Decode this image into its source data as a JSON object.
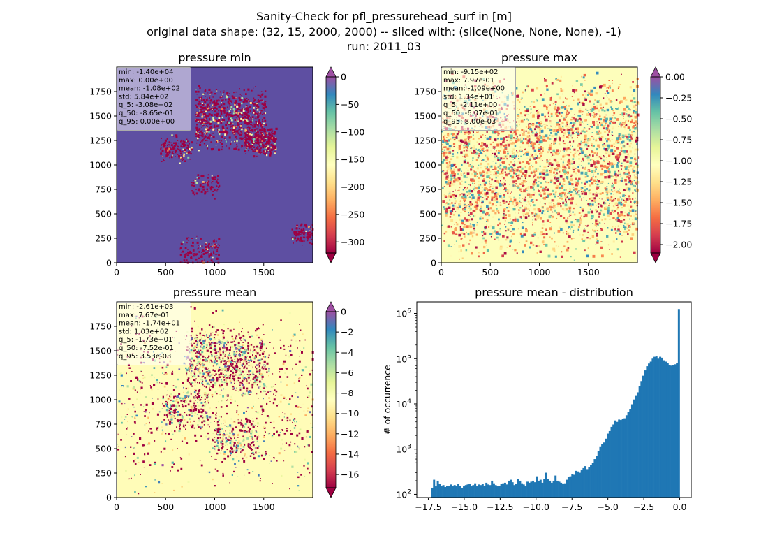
{
  "title_lines": [
    "Sanity-Check for pfl_pressurehead_surf in [m]",
    "original data shape: (32, 15, 2000, 2000) -- sliced with: (slice(None, None, None), -1)",
    "run: 2011_03"
  ],
  "colors": {
    "background_min": "#5e4fa2",
    "background_max": "#fdfebb",
    "background_mean": "#fffcb8",
    "accent_dark": "#9e0142",
    "hist_bar": "#1f77b4",
    "stats_box_bg": "#ffffff",
    "stats_box_border": "#aaaaaa"
  },
  "colormap": "Spectral",
  "chart_data": [
    {
      "type": "heatmap",
      "title": "pressure min",
      "xlim": [
        0,
        2000
      ],
      "ylim": [
        0,
        2000
      ],
      "xticks": [
        "0",
        "500",
        "1000",
        "1500"
      ],
      "yticks": [
        "0",
        "250",
        "500",
        "750",
        "1000",
        "1250",
        "1500",
        "1750"
      ],
      "colorbar": {
        "range": [
          -320,
          0
        ],
        "ticks": [
          "0",
          "−50",
          "−100",
          "−150",
          "−200",
          "−250",
          "−300"
        ],
        "extend": "both"
      },
      "stats": [
        "min: -1.40e+04",
        "max: 0.00e+00",
        "mean: -1.08e+02",
        "std: 5.84e+02",
        "q_5: -3.08e+02",
        "q_50: -8.65e-01",
        "q_95: 0.00e+00"
      ]
    },
    {
      "type": "heatmap",
      "title": "pressure max",
      "xlim": [
        0,
        2000
      ],
      "ylim": [
        0,
        2000
      ],
      "xticks": [
        "0",
        "500",
        "1000",
        "1500"
      ],
      "yticks": [
        "0",
        "250",
        "500",
        "750",
        "1000",
        "1250",
        "1500",
        "1750"
      ],
      "colorbar": {
        "range": [
          -2.1,
          0
        ],
        "ticks": [
          "0.00",
          "−0.25",
          "−0.50",
          "−0.75",
          "−1.00",
          "−1.25",
          "−1.50",
          "−1.75",
          "−2.00"
        ],
        "extend": "both"
      },
      "stats": [
        "min: -9.15e+02",
        "max: 7.97e-01",
        "mean: -1.09e+00",
        "std: 1.34e+01",
        "q_5: -2.11e+00",
        "q_50: -6.07e-01",
        "q_95: 8.00e-03"
      ]
    },
    {
      "type": "heatmap",
      "title": "pressure mean",
      "xlim": [
        0,
        2000
      ],
      "ylim": [
        0,
        2000
      ],
      "xticks": [
        "0",
        "500",
        "1000",
        "1500"
      ],
      "yticks": [
        "0",
        "250",
        "500",
        "750",
        "1000",
        "1250",
        "1500",
        "1750"
      ],
      "colorbar": {
        "range": [
          -17.3,
          0
        ],
        "ticks": [
          "0",
          "−2",
          "−4",
          "−6",
          "−8",
          "−10",
          "−12",
          "−14",
          "−16"
        ],
        "extend": "both"
      },
      "stats": [
        "min: -2.61e+03",
        "max: 7.67e-01",
        "mean: -1.74e+01",
        "std: 1.03e+02",
        "q_5: -1.73e+01",
        "q_50: -7.52e-01",
        "q_95: 3.53e-03"
      ]
    },
    {
      "type": "bar",
      "title": "pressure mean - distribution",
      "ylabel": "# of occurrence",
      "xlabel": "",
      "yscale": "log",
      "xlim": [
        -18.3,
        0.8
      ],
      "ylim": [
        85,
        1800000
      ],
      "xticks": [
        "−17.5",
        "−15.0",
        "−12.5",
        "−10.0",
        "−7.5",
        "−5.0",
        "−2.5",
        "0.0"
      ],
      "yticks": [
        "10^2",
        "10^3",
        "10^4",
        "10^5",
        "10^6"
      ],
      "bin_range": [
        -17.3,
        0
      ],
      "counts": [
        140,
        210,
        150,
        200,
        170,
        150,
        160,
        145,
        155,
        150,
        165,
        150,
        160,
        150,
        170,
        155,
        140,
        150,
        160,
        165,
        170,
        150,
        160,
        175,
        150,
        165,
        160,
        170,
        155,
        180,
        165,
        160,
        200,
        175,
        160,
        150,
        155,
        170,
        175,
        180,
        165,
        200,
        210,
        185,
        160,
        170,
        220,
        200,
        175,
        165,
        150,
        190,
        180,
        190,
        200,
        185,
        250,
        200,
        210,
        180,
        220,
        300,
        220,
        200,
        180,
        200,
        260,
        200,
        190,
        180,
        170,
        175,
        210,
        240,
        250,
        280,
        270,
        330,
        320,
        300,
        340,
        380,
        420,
        360,
        400,
        440,
        500,
        600,
        700,
        900,
        1150,
        1300,
        1400,
        1700,
        2200,
        2500,
        3100,
        3500,
        4300,
        4000,
        4500,
        4400,
        4600,
        4800,
        5600,
        6700,
        7700,
        9800,
        12500,
        15000,
        18000,
        25000,
        32000,
        42000,
        55000,
        68000,
        78000,
        86000,
        100000,
        110000,
        112000,
        100000,
        110000,
        105000,
        92000,
        86000,
        80000,
        72000,
        70000,
        72000,
        75000,
        80000,
        1250000
      ]
    }
  ]
}
